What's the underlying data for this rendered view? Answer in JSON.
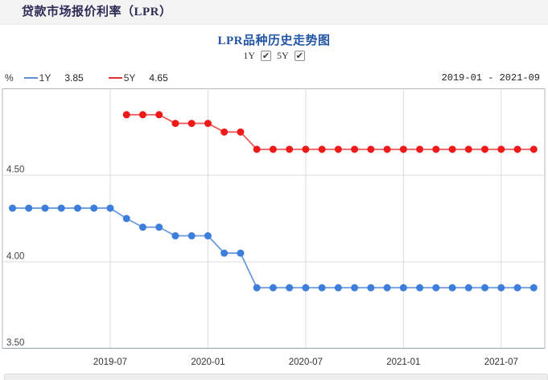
{
  "page": {
    "header_title": "贷款市场报价利率（LPR）"
  },
  "chart_header": {
    "title": "LPR品种历史走势图",
    "controls": [
      {
        "label": "1Y",
        "checked": true
      },
      {
        "label": "5Y",
        "checked": true
      }
    ]
  },
  "legend": {
    "unit": "%",
    "items": [
      {
        "label": "1Y",
        "value": "3.85",
        "color": "#5e8fd6"
      },
      {
        "label": "5Y",
        "value": "4.65",
        "color": "#dd3333"
      }
    ],
    "date_range": "2019-01 - 2021-09"
  },
  "chart_data": {
    "type": "line",
    "title": "LPR品种历史走势图",
    "xlabel": "",
    "ylabel": "%",
    "ylim": [
      3.5,
      5.0
    ],
    "grid": true,
    "x": [
      "2019-01",
      "2019-02",
      "2019-03",
      "2019-04",
      "2019-05",
      "2019-06",
      "2019-07",
      "2019-08",
      "2019-09",
      "2019-10",
      "2019-11",
      "2019-12",
      "2020-01",
      "2020-02",
      "2020-03",
      "2020-04",
      "2020-05",
      "2020-06",
      "2020-07",
      "2020-08",
      "2020-09",
      "2020-10",
      "2020-11",
      "2020-12",
      "2021-01",
      "2021-02",
      "2021-03",
      "2021-04",
      "2021-05",
      "2021-06",
      "2021-07",
      "2021-08",
      "2021-09"
    ],
    "x_ticks": [
      "2019-07",
      "2020-01",
      "2020-07",
      "2021-01",
      "2021-07"
    ],
    "y_ticks": [
      "3.50",
      "4.00",
      "4.50"
    ],
    "series": [
      {
        "name": "1Y",
        "dot_color": "#3d7edd",
        "line_color": "#6b9bdf",
        "values": [
          4.31,
          4.31,
          4.31,
          4.31,
          4.31,
          4.31,
          4.31,
          4.25,
          4.2,
          4.2,
          4.15,
          4.15,
          4.15,
          4.05,
          4.05,
          3.85,
          3.85,
          3.85,
          3.85,
          3.85,
          3.85,
          3.85,
          3.85,
          3.85,
          3.85,
          3.85,
          3.85,
          3.85,
          3.85,
          3.85,
          3.85,
          3.85,
          3.85
        ]
      },
      {
        "name": "5Y",
        "dot_color": "#ee1a1a",
        "line_color": "#ec5a5a",
        "values": [
          null,
          null,
          null,
          null,
          null,
          null,
          null,
          4.85,
          4.85,
          4.85,
          4.8,
          4.8,
          4.8,
          4.75,
          4.75,
          4.65,
          4.65,
          4.65,
          4.65,
          4.65,
          4.65,
          4.65,
          4.65,
          4.65,
          4.65,
          4.65,
          4.65,
          4.65,
          4.65,
          4.65,
          4.65,
          4.65,
          4.65
        ]
      }
    ]
  }
}
